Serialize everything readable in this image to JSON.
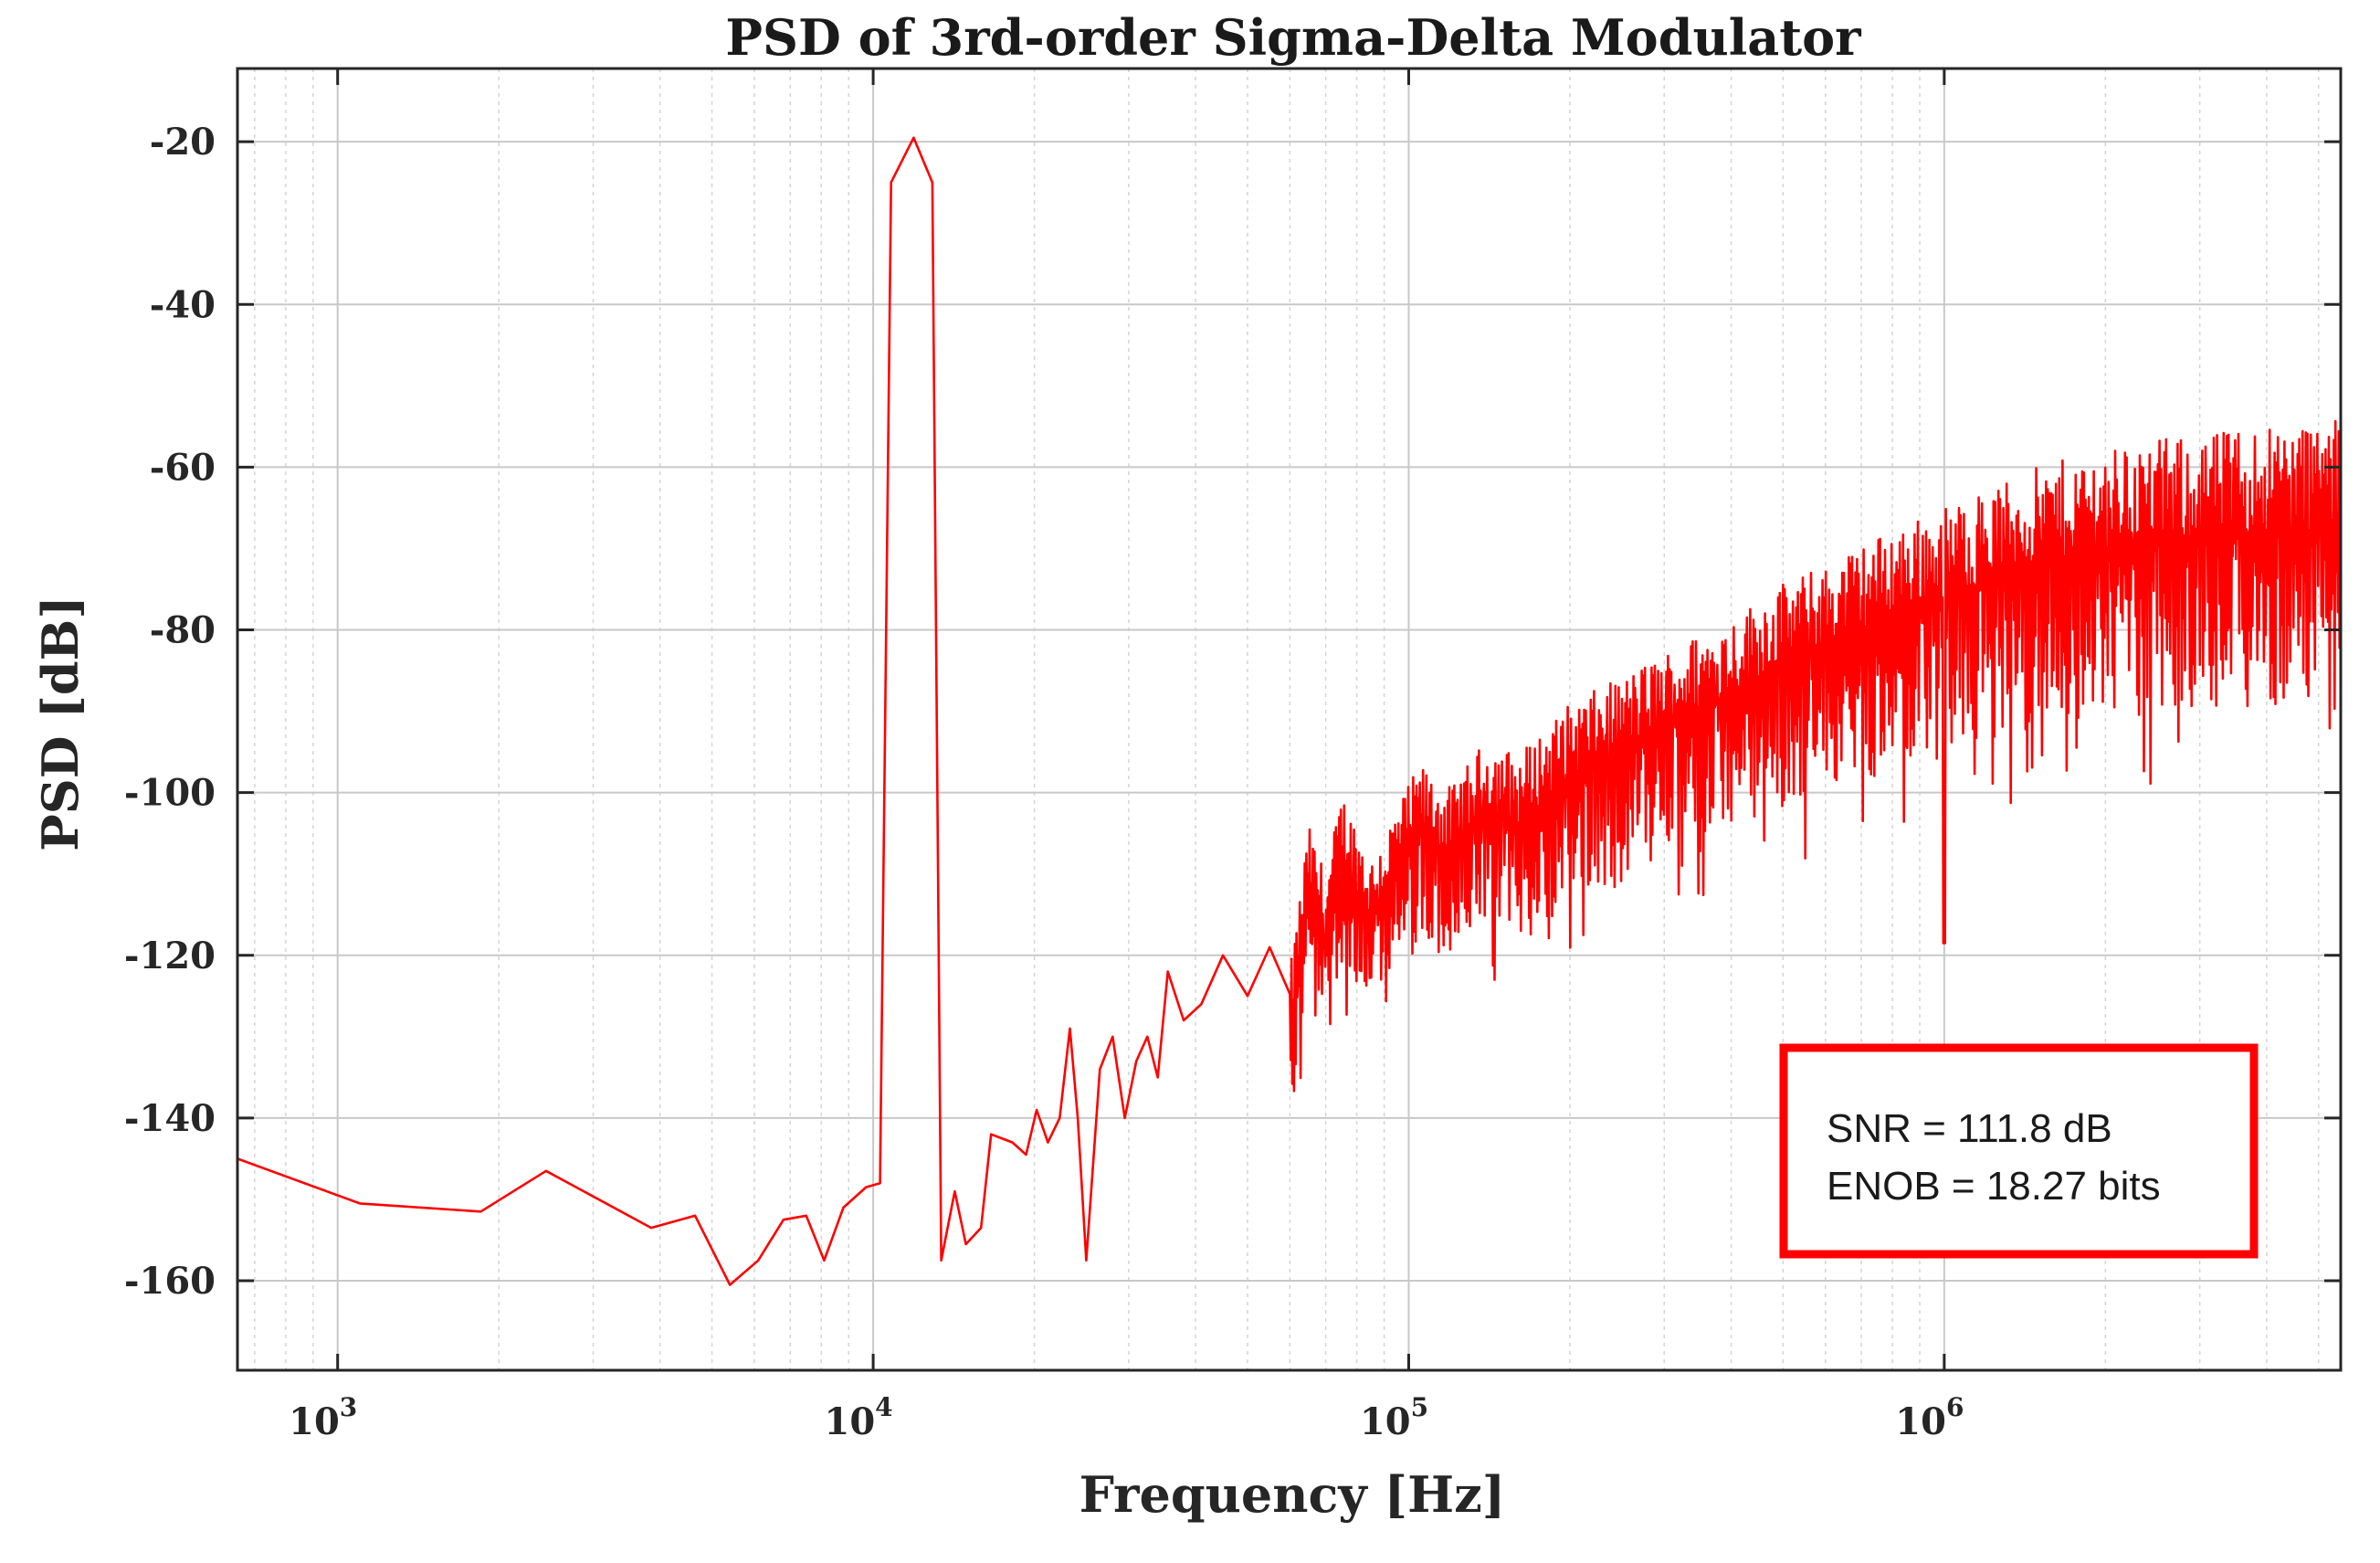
{
  "chart_data": {
    "type": "line",
    "title": "PSD of 3rd-order Sigma-Delta Modulator",
    "xlabel": "Frequency [Hz]",
    "ylabel": "PSD [dB]",
    "xscale": "log",
    "xlim": [
      650,
      5500000
    ],
    "ylim": [
      -171,
      -11
    ],
    "x_ticks": [
      {
        "base": "10",
        "exp": "3",
        "value": 1000
      },
      {
        "base": "10",
        "exp": "4",
        "value": 10000
      },
      {
        "base": "10",
        "exp": "5",
        "value": 100000
      },
      {
        "base": "10",
        "exp": "6",
        "value": 1000000
      }
    ],
    "y_ticks": [
      "-20",
      "-40",
      "-60",
      "-80",
      "-100",
      "-120",
      "-140",
      "-160"
    ],
    "y_tick_values": [
      -20,
      -40,
      -60,
      -80,
      -100,
      -120,
      -140,
      -160
    ],
    "grid": true,
    "series": [
      {
        "name": "PSD",
        "color": "#ff0000",
        "points": [
          [
            650,
            -145
          ],
          [
            1100,
            -150.5
          ],
          [
            1850,
            -151.5
          ],
          [
            2450,
            -146.5
          ],
          [
            3850,
            -153.5
          ],
          [
            4650,
            -152
          ],
          [
            5400,
            -160.5
          ],
          [
            6100,
            -157.5
          ],
          [
            6800,
            -152.5
          ],
          [
            7500,
            -152
          ],
          [
            8100,
            -157.5
          ],
          [
            8800,
            -151
          ],
          [
            9700,
            -148.5
          ],
          [
            10300,
            -148
          ],
          [
            10800,
            -25
          ],
          [
            11900,
            -19.5
          ],
          [
            12900,
            -25
          ],
          [
            13400,
            -157.5
          ],
          [
            14200,
            -149
          ],
          [
            14900,
            -155.5
          ],
          [
            15900,
            -153.5
          ],
          [
            16600,
            -142
          ],
          [
            18200,
            -143
          ],
          [
            19300,
            -144.5
          ],
          [
            20200,
            -139
          ],
          [
            21200,
            -143
          ],
          [
            22300,
            -140
          ],
          [
            23300,
            -129
          ],
          [
            24100,
            -140
          ],
          [
            25000,
            -157.5
          ],
          [
            26500,
            -134
          ],
          [
            28000,
            -130
          ],
          [
            29500,
            -140
          ],
          [
            31000,
            -133
          ],
          [
            32500,
            -130
          ],
          [
            34000,
            -135
          ],
          [
            35500,
            -122
          ],
          [
            38000,
            -128
          ],
          [
            41000,
            -126
          ],
          [
            45000,
            -120
          ],
          [
            50000,
            -125
          ],
          [
            55000,
            -119
          ],
          [
            60000,
            -130
          ],
          [
            65000,
            -112
          ],
          [
            70000,
            -118
          ],
          [
            75000,
            -108
          ],
          [
            85000,
            -116
          ],
          [
            95000,
            -110
          ],
          [
            105000,
            -105
          ],
          [
            120000,
            -108
          ],
          [
            140000,
            -102
          ],
          [
            160000,
            -104
          ],
          [
            200000,
            -98
          ],
          [
            250000,
            -95
          ],
          [
            300000,
            -92
          ],
          [
            400000,
            -88
          ],
          [
            500000,
            -84
          ],
          [
            600000,
            -82
          ],
          [
            800000,
            -78
          ],
          [
            1000000,
            -76
          ],
          [
            1500000,
            -72
          ],
          [
            2000000,
            -70
          ],
          [
            3000000,
            -69
          ],
          [
            4000000,
            -68
          ],
          [
            5500000,
            -68
          ]
        ],
        "noise_band": {
          "start_hz": 60000,
          "spread_low_db": [
            [
              60000,
              12
            ],
            [
              200000,
              16
            ],
            [
              600000,
              18
            ],
            [
              1500000,
              20
            ],
            [
              5500000,
              22
            ]
          ],
          "spread_high_db": [
            [
              60000,
              8
            ],
            [
              200000,
              9
            ],
            [
              600000,
              10
            ],
            [
              1500000,
              12
            ],
            [
              5500000,
              14
            ]
          ],
          "deep_notch": {
            "hz": 1000000,
            "db": -118.5
          }
        }
      }
    ],
    "annotation": {
      "lines": [
        "SNR = 111.8 dB",
        "ENOB = 18.27 bits"
      ],
      "border_color": "#ff0000",
      "placement": "bottom-right"
    }
  }
}
